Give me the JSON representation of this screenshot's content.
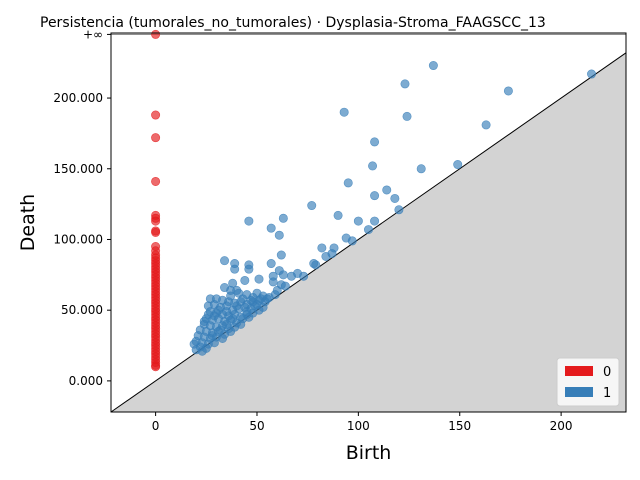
{
  "chart_data": {
    "type": "scatter",
    "title": "Persistencia (tumorales_no_tumorales) · Dysplasia-Stroma_FAAGSCC_13",
    "xlabel": "Birth",
    "ylabel": "Death",
    "xlim": [
      -22,
      232
    ],
    "ylim": [
      -22,
      246
    ],
    "x_ticks": [
      0,
      50,
      100,
      150,
      200
    ],
    "x_tick_labels": [
      "0",
      "50",
      "100",
      "150",
      "200"
    ],
    "y_ticks": [
      0,
      50,
      100,
      150,
      200
    ],
    "y_tick_labels": [
      "0.000",
      "50.000",
      "100.000",
      "150.000",
      "200.000"
    ],
    "infinity_level": 245,
    "infinity_label": "+∞",
    "diagonal": true,
    "grid": false,
    "legend_position": "bottom-right",
    "series": [
      {
        "name": "0",
        "color": "#e41a1c",
        "points": [
          [
            0,
            245
          ],
          [
            0,
            188
          ],
          [
            0,
            172
          ],
          [
            0,
            141
          ],
          [
            0,
            117
          ],
          [
            0,
            115
          ],
          [
            0,
            113
          ],
          [
            0,
            106
          ],
          [
            0,
            105
          ],
          [
            0,
            95
          ],
          [
            0,
            92
          ],
          [
            0,
            89
          ],
          [
            0,
            87
          ],
          [
            0,
            85
          ],
          [
            0,
            83
          ],
          [
            0,
            81
          ],
          [
            0,
            79
          ],
          [
            0,
            77
          ],
          [
            0,
            75
          ],
          [
            0,
            73
          ],
          [
            0,
            71
          ],
          [
            0,
            69
          ],
          [
            0,
            67
          ],
          [
            0,
            65
          ],
          [
            0,
            63
          ],
          [
            0,
            61
          ],
          [
            0,
            59
          ],
          [
            0,
            57
          ],
          [
            0,
            55
          ],
          [
            0,
            53
          ],
          [
            0,
            51
          ],
          [
            0,
            49
          ],
          [
            0,
            47
          ],
          [
            0,
            45
          ],
          [
            0,
            43
          ],
          [
            0,
            41
          ],
          [
            0,
            39
          ],
          [
            0,
            37
          ],
          [
            0,
            35
          ],
          [
            0,
            33
          ],
          [
            0,
            31
          ],
          [
            0,
            29
          ],
          [
            0,
            27
          ],
          [
            0,
            25
          ],
          [
            0,
            23
          ],
          [
            0,
            21
          ],
          [
            0,
            19
          ],
          [
            0,
            17
          ],
          [
            0,
            15
          ],
          [
            0,
            13
          ],
          [
            0,
            11
          ],
          [
            0,
            10
          ]
        ]
      },
      {
        "name": "1",
        "color": "#377eb8",
        "points": [
          [
            215,
            217
          ],
          [
            174,
            205
          ],
          [
            137,
            223
          ],
          [
            123,
            210
          ],
          [
            124,
            187
          ],
          [
            163,
            181
          ],
          [
            93,
            190
          ],
          [
            108,
            169
          ],
          [
            107,
            152
          ],
          [
            149,
            153
          ],
          [
            131,
            150
          ],
          [
            95,
            140
          ],
          [
            114,
            135
          ],
          [
            108,
            131
          ],
          [
            118,
            129
          ],
          [
            120,
            121
          ],
          [
            77,
            124
          ],
          [
            63,
            115
          ],
          [
            90,
            117
          ],
          [
            46,
            113
          ],
          [
            57,
            108
          ],
          [
            108,
            113
          ],
          [
            100,
            113
          ],
          [
            105,
            107
          ],
          [
            61,
            103
          ],
          [
            94,
            101
          ],
          [
            97,
            99
          ],
          [
            82,
            94
          ],
          [
            88,
            94
          ],
          [
            87,
            90
          ],
          [
            62,
            89
          ],
          [
            84,
            88
          ],
          [
            34,
            85
          ],
          [
            39,
            83
          ],
          [
            46,
            82
          ],
          [
            57,
            83
          ],
          [
            78,
            83
          ],
          [
            79,
            82
          ],
          [
            46,
            79
          ],
          [
            39,
            79
          ],
          [
            61,
            78
          ],
          [
            63,
            75
          ],
          [
            58,
            74
          ],
          [
            67,
            74
          ],
          [
            70,
            76
          ],
          [
            73,
            74
          ],
          [
            51,
            72
          ],
          [
            44,
            71
          ],
          [
            38,
            69
          ],
          [
            58,
            70
          ],
          [
            62,
            68
          ],
          [
            64,
            67
          ],
          [
            34,
            66
          ],
          [
            37,
            64
          ],
          [
            40,
            64
          ],
          [
            41,
            62
          ],
          [
            45,
            61
          ],
          [
            50,
            62
          ],
          [
            53,
            60
          ],
          [
            56,
            59
          ],
          [
            59,
            61
          ],
          [
            60,
            64
          ],
          [
            27,
            58
          ],
          [
            30,
            58
          ],
          [
            33,
            57
          ],
          [
            36,
            56
          ],
          [
            39,
            55
          ],
          [
            42,
            56
          ],
          [
            45,
            54
          ],
          [
            48,
            56
          ],
          [
            51,
            57
          ],
          [
            54,
            56
          ],
          [
            26,
            53
          ],
          [
            29,
            54
          ],
          [
            32,
            52
          ],
          [
            35,
            53
          ],
          [
            38,
            50
          ],
          [
            41,
            51
          ],
          [
            44,
            52
          ],
          [
            47,
            51
          ],
          [
            50,
            54
          ],
          [
            53,
            52
          ],
          [
            27,
            49
          ],
          [
            30,
            48
          ],
          [
            33,
            47
          ],
          [
            36,
            46
          ],
          [
            39,
            47
          ],
          [
            42,
            45
          ],
          [
            45,
            47
          ],
          [
            48,
            48
          ],
          [
            51,
            50
          ],
          [
            25,
            44
          ],
          [
            28,
            43
          ],
          [
            31,
            44
          ],
          [
            34,
            42
          ],
          [
            37,
            43
          ],
          [
            40,
            41
          ],
          [
            43,
            44
          ],
          [
            46,
            45
          ],
          [
            24,
            40
          ],
          [
            27,
            39
          ],
          [
            30,
            38
          ],
          [
            33,
            39
          ],
          [
            36,
            37
          ],
          [
            39,
            38
          ],
          [
            42,
            40
          ],
          [
            22,
            36
          ],
          [
            25,
            35
          ],
          [
            28,
            34
          ],
          [
            31,
            35
          ],
          [
            34,
            33
          ],
          [
            37,
            35
          ],
          [
            21,
            32
          ],
          [
            24,
            31
          ],
          [
            27,
            30
          ],
          [
            30,
            31
          ],
          [
            33,
            30
          ],
          [
            20,
            28
          ],
          [
            23,
            27
          ],
          [
            26,
            26
          ],
          [
            29,
            27
          ],
          [
            19,
            26
          ],
          [
            22,
            24
          ],
          [
            25,
            23
          ],
          [
            20,
            22
          ],
          [
            23,
            21
          ],
          [
            28,
            32
          ],
          [
            32,
            36
          ],
          [
            35,
            40
          ],
          [
            38,
            44
          ],
          [
            29,
            46
          ],
          [
            31,
            50
          ],
          [
            35,
            49
          ],
          [
            40,
            53
          ],
          [
            43,
            58
          ],
          [
            37,
            60
          ],
          [
            48,
            59
          ],
          [
            52,
            58
          ],
          [
            55,
            58
          ],
          [
            26,
            47
          ],
          [
            24,
            42
          ],
          [
            45,
            49
          ],
          [
            49,
            53
          ],
          [
            47,
            57
          ]
        ]
      }
    ],
    "legend": [
      {
        "label": "0",
        "color": "#e41a1c"
      },
      {
        "label": "1",
        "color": "#377eb8"
      }
    ]
  }
}
